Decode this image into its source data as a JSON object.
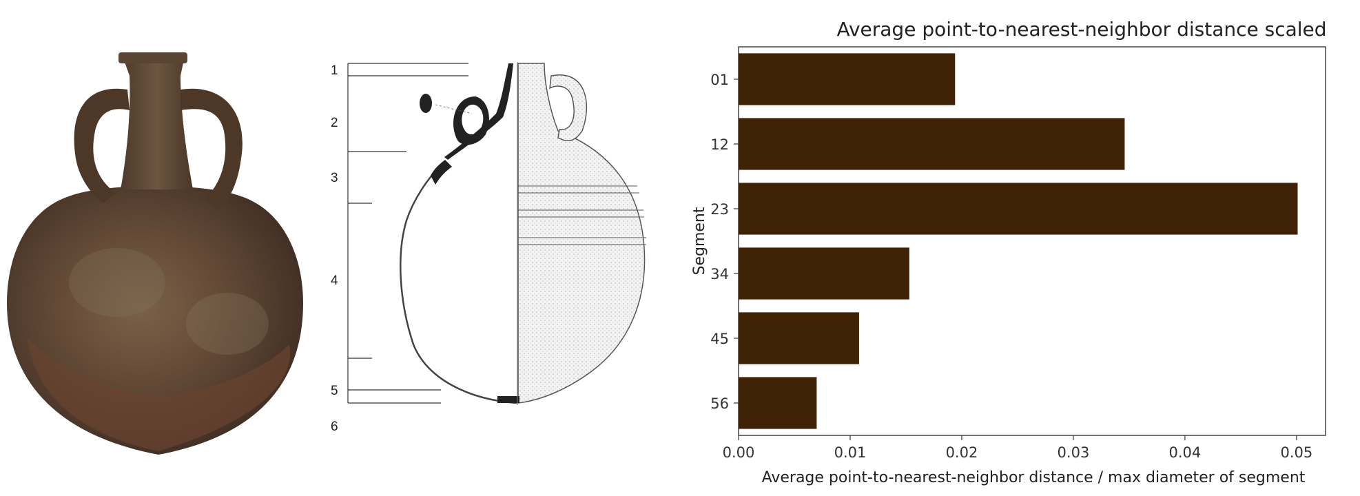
{
  "figure": {
    "segment_labels": [
      "1",
      "2",
      "3",
      "4",
      "5",
      "6"
    ]
  },
  "chart_data": {
    "type": "bar",
    "orientation": "horizontal",
    "title": "Average point-to-nearest-neighbor distance scaled",
    "xlabel": "Average point-to-nearest-neighbor distance / max diameter of segment",
    "ylabel": "Segment",
    "categories": [
      "01",
      "12",
      "23",
      "34",
      "45",
      "56"
    ],
    "values": [
      0.0194,
      0.0346,
      0.0501,
      0.0153,
      0.0108,
      0.007
    ],
    "xlim": [
      0,
      0.0526
    ],
    "xticks": [
      0.0,
      0.01,
      0.02,
      0.03,
      0.04,
      0.05
    ],
    "xtick_labels": [
      "0.00",
      "0.01",
      "0.02",
      "0.03",
      "0.04",
      "0.05"
    ],
    "grid": false,
    "bar_color": "#3f2206"
  }
}
